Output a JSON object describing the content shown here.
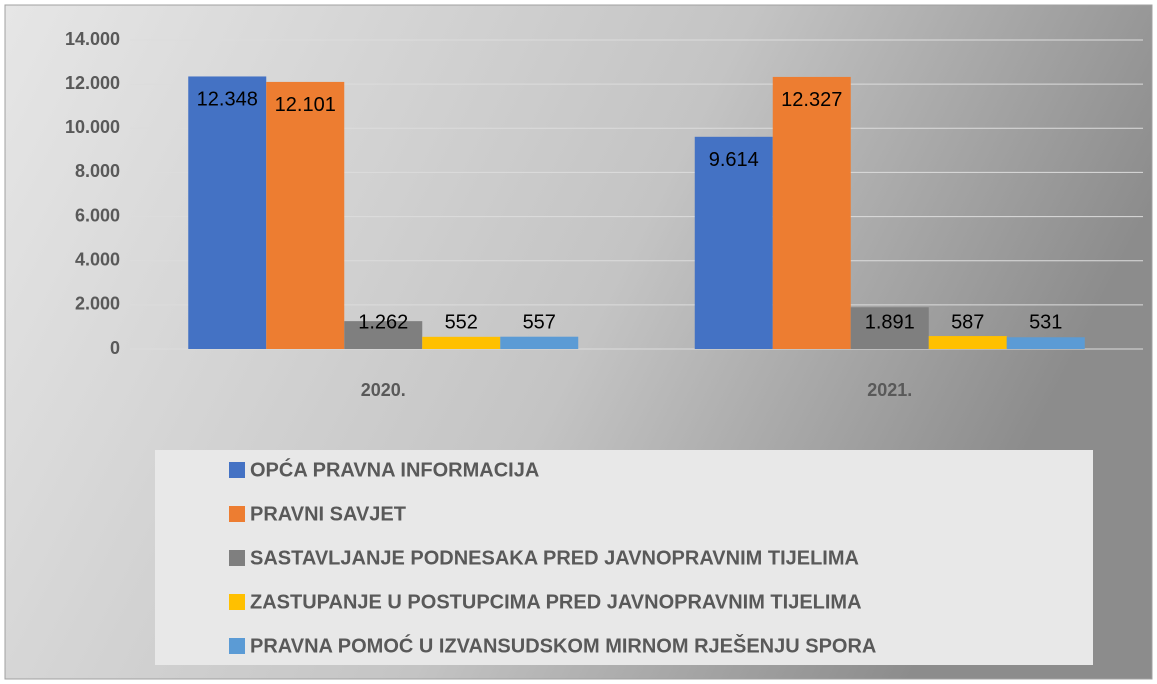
{
  "chart_data": {
    "type": "bar",
    "categories": [
      "2020.",
      "2021."
    ],
    "series": [
      {
        "name": "OPĆA PRAVNA INFORMACIJA",
        "color": "#4472c4",
        "values": [
          12348,
          9614
        ],
        "value_labels": [
          "12.348",
          "9.614"
        ]
      },
      {
        "name": "PRAVNI SAVJET",
        "color": "#ed7d31",
        "values": [
          12101,
          12327
        ],
        "value_labels": [
          "12.101",
          "12.327"
        ]
      },
      {
        "name": "SASTAVLJANJE PODNESAKA PRED JAVNOPRAVNIM TIJELIMA",
        "color": "#7f7f7f",
        "values": [
          1262,
          1891
        ],
        "value_labels": [
          "1.262",
          "1.891"
        ]
      },
      {
        "name": "ZASTUPANJE U POSTUPCIMA PRED JAVNOPRAVNIM TIJELIMA",
        "color": "#ffc000",
        "values": [
          552,
          587
        ]
      },
      {
        "name": "PRAVNA POMOĆ U IZVANSUDSKOM MIRNOM RJEŠENJU SPORA",
        "color": "#5b9bd5",
        "values": [
          557,
          531
        ]
      }
    ],
    "ylim": [
      0,
      14000
    ],
    "yticks": [
      0,
      {
        "value": 2000,
        "label": "2.000"
      },
      {
        "value": 4000,
        "label": "4.000"
      },
      {
        "value": 6000,
        "label": "6.000"
      },
      {
        "value": 8000,
        "label": "8.000"
      },
      {
        "value": 10000,
        "label": "10.000"
      },
      {
        "value": 12000,
        "label": "12.000"
      },
      {
        "value": 14000,
        "label": "14.000"
      }
    ],
    "grid": true,
    "legend": "bottom"
  }
}
